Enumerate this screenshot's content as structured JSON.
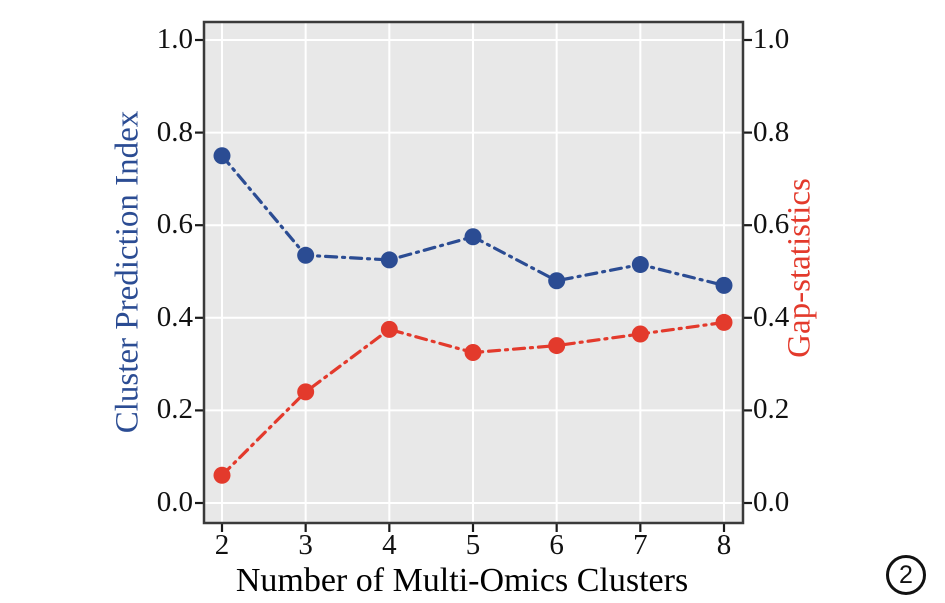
{
  "figure": {
    "badge_label": "2"
  },
  "chart_data": {
    "type": "line",
    "line_style": "dash-dot",
    "x": [
      2,
      3,
      4,
      5,
      6,
      7,
      8
    ],
    "x_tick_labels": [
      "2",
      "3",
      "4",
      "5",
      "6",
      "7",
      "8"
    ],
    "xlabel": "Number of Multi-Omics Clusters",
    "xlim": [
      2,
      8
    ],
    "y_ticks": [
      0.0,
      0.2,
      0.4,
      0.6,
      0.8,
      1.0
    ],
    "y_tick_labels": [
      "0.0",
      "0.2",
      "0.4",
      "0.6",
      "0.8",
      "1.0"
    ],
    "ylim": [
      0.0,
      1.0
    ],
    "left_axis_label": "Cluster Prediction Index",
    "right_axis_label": "Gap-statistics",
    "grid": true,
    "legend_position": "none",
    "series": [
      {
        "name": "Cluster Prediction Index",
        "axis": "left",
        "color": "#2b4c93",
        "values": [
          0.75,
          0.535,
          0.525,
          0.575,
          0.48,
          0.515,
          0.47
        ]
      },
      {
        "name": "Gap-statistics",
        "axis": "right",
        "color": "#e33a2c",
        "values": [
          0.06,
          0.24,
          0.375,
          0.325,
          0.34,
          0.365,
          0.39
        ]
      }
    ],
    "colors": {
      "plot_background": "#e8e8e8",
      "grid_line": "#ffffff",
      "axis_border": "#3a3a3a",
      "tick": "#1a1a1a",
      "tick_label": "#111111",
      "x_label": "#000000"
    }
  }
}
